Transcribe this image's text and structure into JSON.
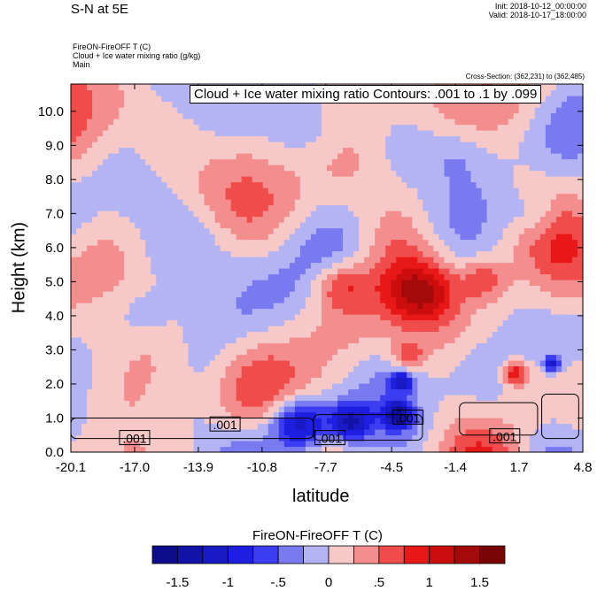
{
  "header": {
    "title": "S-N at 5E",
    "init": "Init: 2018-10-12_00:00:00",
    "valid": "Valid: 2018-10-17_18:00:00",
    "line1": "FireON-FireOFF T   (C)",
    "line2": "Cloud + Ice water mixing ratio   (g/kg)",
    "line3": "Main",
    "cross_section": "Cross-Section: (362,231) to (362,485)"
  },
  "chart_data": {
    "type": "heatmap",
    "title": "FireON-FireOFF T  (C)",
    "contour_legend": "Cloud + Ice water mixing ratio Contours: .001 to .1 by .099",
    "xlabel": "latitude",
    "ylabel": "Height (km)",
    "xlim": [
      -20.1,
      4.8
    ],
    "ylim": [
      0.0,
      10.8
    ],
    "x_ticks": [
      "-20.1",
      "-17.0",
      "-13.9",
      "-10.8",
      "-7.7",
      "-4.5",
      "-1.4",
      "1.7",
      "4.8"
    ],
    "y_ticks": [
      "0.0",
      "1.0",
      "2.0",
      "3.0",
      "4.0",
      "5.0",
      "6.0",
      "7.0",
      "8.0",
      "9.0",
      "10.0"
    ],
    "contour_labels": [
      {
        "text": ".001",
        "lat": -17.0,
        "z": 0.4
      },
      {
        "text": ".001",
        "lat": -12.6,
        "z": 0.8
      },
      {
        "text": ".001",
        "lat": -7.5,
        "z": 0.4
      },
      {
        "text": ".001",
        "lat": -3.7,
        "z": 1.0
      },
      {
        "text": ".001",
        "lat": 1.0,
        "z": 0.45
      }
    ],
    "colorbar": {
      "title": "FireON-FireOFF T  (C)",
      "tick_labels": [
        "-1.5",
        "-1",
        "-.5",
        "0",
        ".5",
        "1",
        "1.5"
      ],
      "tick_values": [
        -1.5,
        -1.0,
        -0.5,
        0,
        0.5,
        1.0,
        1.5
      ],
      "min": -1.75,
      "step": 0.25,
      "colors": [
        "#0d0d8c",
        "#1212a8",
        "#1a1ac4",
        "#1e1ee0",
        "#3c3cf0",
        "#7a7af0",
        "#b4b4f5",
        "#f7c8c8",
        "#f48e8e",
        "#f04c4c",
        "#e81818",
        "#cc0d0d",
        "#a50a0a",
        "#7a0505"
      ]
    },
    "anomaly_blobs": [
      {
        "lat": -9.0,
        "z": 0.8,
        "r": 1.5,
        "value": -1.6
      },
      {
        "lat": -6.5,
        "z": 0.9,
        "r": 1.0,
        "value": -1.2
      },
      {
        "lat": -4.0,
        "z": 2.1,
        "r": 0.6,
        "value": -1.0
      },
      {
        "lat": -4.2,
        "z": 1.1,
        "r": 0.7,
        "value": -1.4
      },
      {
        "lat": 3.3,
        "z": 2.6,
        "r": 0.4,
        "value": -1.2
      },
      {
        "lat": -7.0,
        "z": 4.9,
        "r": 1.4,
        "value": 0.8
      },
      {
        "lat": -3.0,
        "z": 4.7,
        "r": 1.6,
        "value": 0.9
      },
      {
        "lat": 0.0,
        "z": 5.1,
        "r": 1.2,
        "value": 0.6
      },
      {
        "lat": -3.7,
        "z": 2.8,
        "r": 0.8,
        "value": 0.7
      },
      {
        "lat": 1.5,
        "z": 2.3,
        "r": 0.6,
        "value": 1.0
      },
      {
        "lat": -13.5,
        "z": 6.0,
        "r": 2.0,
        "value": -0.4
      },
      {
        "lat": -16.5,
        "z": 4.0,
        "r": 1.5,
        "value": -0.3
      },
      {
        "lat": -8.0,
        "z": 9.5,
        "r": 1.8,
        "value": -0.3
      },
      {
        "lat": -1.5,
        "z": 8.8,
        "r": 1.5,
        "value": -0.3
      },
      {
        "lat": 2.5,
        "z": 7.0,
        "r": 1.3,
        "value": -0.4
      }
    ]
  }
}
